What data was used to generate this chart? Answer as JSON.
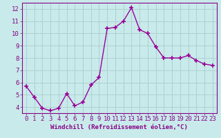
{
  "x": [
    0,
    1,
    2,
    3,
    4,
    5,
    6,
    7,
    8,
    9,
    10,
    11,
    12,
    13,
    14,
    15,
    16,
    17,
    18,
    19,
    20,
    21,
    22,
    23
  ],
  "y": [
    5.7,
    4.8,
    3.9,
    3.7,
    3.9,
    5.1,
    4.1,
    4.4,
    5.8,
    6.4,
    10.4,
    10.5,
    11.0,
    12.1,
    10.3,
    10.0,
    8.9,
    8.0,
    8.0,
    8.0,
    8.2,
    7.8,
    7.5,
    7.4
  ],
  "line_color": "#990099",
  "marker": "+",
  "markersize": 4,
  "markeredgewidth": 1.2,
  "linewidth": 1.0,
  "xlabel": "Windchill (Refroidissement éolien,°C)",
  "xlabel_fontsize": 6.5,
  "ylim": [
    3.5,
    12.5
  ],
  "xlim": [
    -0.5,
    23.5
  ],
  "yticks": [
    4,
    5,
    6,
    7,
    8,
    9,
    10,
    11,
    12
  ],
  "xticks": [
    0,
    1,
    2,
    3,
    4,
    5,
    6,
    7,
    8,
    9,
    10,
    11,
    12,
    13,
    14,
    15,
    16,
    17,
    18,
    19,
    20,
    21,
    22,
    23
  ],
  "bg_color": "#c8eaea",
  "grid_color": "#aacccc",
  "tick_color": "#880088",
  "spine_color": "#880088",
  "label_color": "#880088",
  "tick_fontsize": 6.5
}
